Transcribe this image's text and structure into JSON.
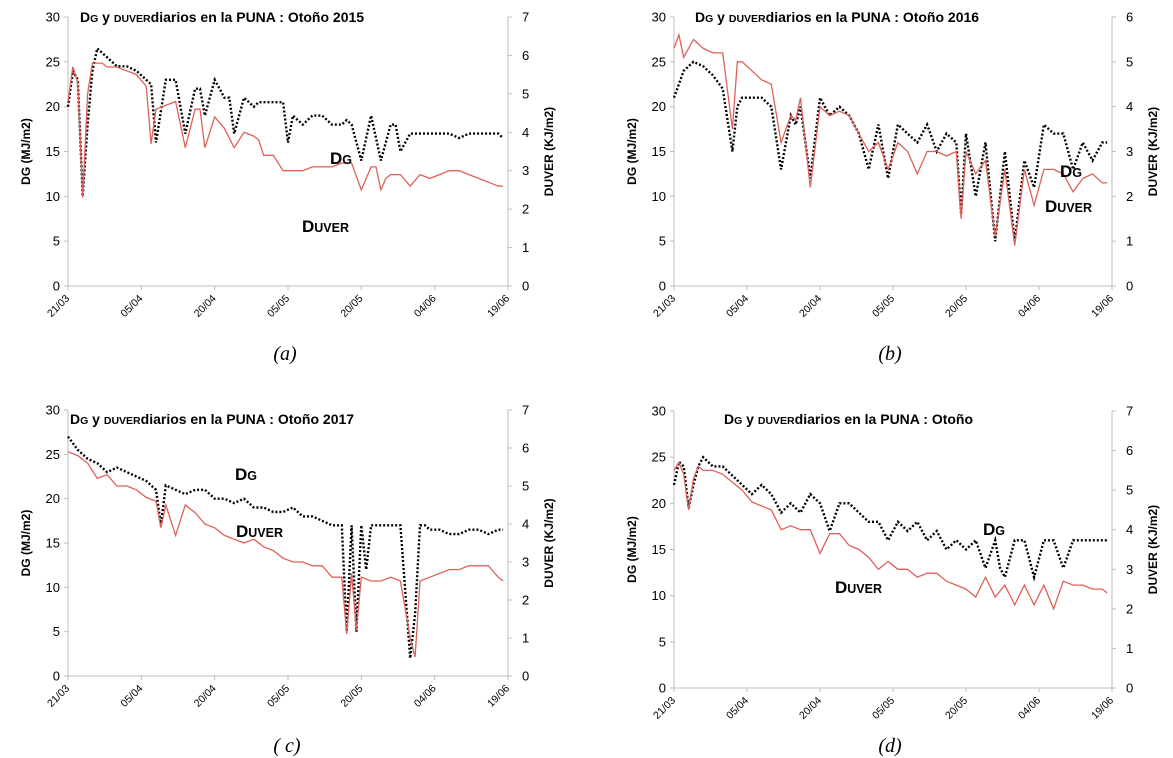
{
  "figure": {
    "dg_color": "#000000",
    "duver_color": "#e0605a"
  },
  "chart_data": [
    {
      "panel": "a",
      "type": "line",
      "caption": "(a)",
      "title_parts": [
        {
          "text": "D",
          "small": false
        },
        {
          "text": "G",
          "small": true
        },
        {
          "text": " y ",
          "small": false
        },
        {
          "text": "DUVER",
          "small": true
        },
        {
          "text": "diarios en la PUNA : Otoño 2015",
          "small": false
        }
      ],
      "ylabel_left": "DG (MJ/m2)",
      "ylabel_right": "DUVER (KJ/m2)",
      "ylim_left": [
        0,
        30
      ],
      "ylim_right": [
        0,
        7
      ],
      "yticks_left": [
        0,
        5,
        10,
        15,
        20,
        25,
        30
      ],
      "yticks_right": [
        0,
        1,
        2,
        3,
        4,
        5,
        6,
        7
      ],
      "xticks": [
        "21/03",
        "05/04",
        "20/04",
        "05/05",
        "20/05",
        "04/06",
        "19/06"
      ],
      "xlim_days": [
        0,
        90
      ],
      "series": [
        {
          "name": "DG",
          "axis": "left",
          "style": "dotted",
          "label_main": "D",
          "label_sub": "G",
          "x": [
            0,
            1,
            2,
            3,
            4,
            5,
            6,
            7,
            8,
            9,
            10,
            12,
            14,
            16,
            17,
            18,
            20,
            22,
            24,
            26,
            27,
            28,
            30,
            32,
            33,
            34,
            36,
            38,
            39,
            40,
            42,
            44,
            45,
            46,
            48,
            50,
            52,
            54,
            56,
            57,
            58,
            60,
            62,
            64,
            66,
            67,
            68,
            70,
            71,
            72,
            74,
            76,
            78,
            80,
            82,
            84,
            86,
            88,
            89
          ],
          "values": [
            20,
            24,
            23,
            10,
            18,
            24,
            26.5,
            26,
            25.5,
            25,
            24.5,
            24.5,
            24,
            23,
            22.5,
            16,
            23,
            23,
            17,
            22,
            22,
            19,
            23,
            21,
            21,
            17,
            21,
            20,
            20.5,
            20.5,
            20.5,
            20.5,
            16,
            19,
            18,
            19,
            19,
            18,
            18,
            18.5,
            18,
            14,
            19,
            14,
            18,
            18,
            15,
            17,
            17,
            17,
            17,
            17,
            17,
            16.5,
            17,
            17,
            17,
            17,
            16.5
          ]
        },
        {
          "name": "DUVER",
          "axis": "right",
          "style": "solid",
          "label_main": "D",
          "label_sub": "UVER",
          "x": [
            0,
            1,
            2,
            3,
            4,
            5,
            6,
            7,
            8,
            10,
            12,
            14,
            16,
            17,
            18,
            20,
            22,
            24,
            26,
            27,
            28,
            30,
            32,
            34,
            36,
            38,
            39,
            40,
            42,
            44,
            46,
            48,
            50,
            52,
            54,
            56,
            58,
            60,
            62,
            63,
            64,
            65,
            66,
            68,
            70,
            72,
            74,
            76,
            78,
            80,
            82,
            84,
            86,
            88,
            89
          ],
          "values": [
            4.8,
            5.7,
            5.3,
            2.3,
            5,
            5.8,
            5.8,
            5.8,
            5.7,
            5.7,
            5.6,
            5.5,
            5.2,
            3.7,
            4.6,
            4.7,
            4.8,
            3.6,
            4.6,
            4.6,
            3.6,
            4.4,
            4.1,
            3.6,
            4.0,
            3.9,
            3.8,
            3.4,
            3.4,
            3.0,
            3.0,
            3.0,
            3.1,
            3.1,
            3.1,
            3.2,
            3.2,
            2.5,
            3.1,
            3.1,
            2.5,
            2.8,
            2.9,
            2.9,
            2.6,
            2.9,
            2.8,
            2.9,
            3.0,
            3.0,
            2.9,
            2.8,
            2.7,
            2.6,
            2.6
          ]
        }
      ]
    },
    {
      "panel": "b",
      "type": "line",
      "caption": "(b)",
      "title_parts": [
        {
          "text": "D",
          "small": false
        },
        {
          "text": "G",
          "small": true
        },
        {
          "text": " y ",
          "small": false
        },
        {
          "text": "DUVER",
          "small": true
        },
        {
          "text": "diarios en la PUNA : Otoño 2016",
          "small": false
        }
      ],
      "ylabel_left": "DG (MJ/m2)",
      "ylabel_right": "DUVER (KJ/m2)",
      "ylim_left": [
        0,
        30
      ],
      "ylim_right": [
        0,
        6
      ],
      "yticks_left": [
        0,
        5,
        10,
        15,
        20,
        25,
        30
      ],
      "yticks_right": [
        0,
        1,
        2,
        3,
        4,
        5,
        6
      ],
      "xticks": [
        "21/03",
        "05/04",
        "20/04",
        "05/05",
        "20/05",
        "04/06",
        "19/06"
      ],
      "xlim_days": [
        0,
        90
      ],
      "series": [
        {
          "name": "DG",
          "axis": "left",
          "style": "dotted",
          "label_main": "D",
          "label_sub": "G",
          "x": [
            0,
            2,
            4,
            6,
            8,
            10,
            12,
            13,
            14,
            16,
            18,
            20,
            22,
            24,
            25,
            26,
            28,
            30,
            32,
            34,
            36,
            38,
            40,
            42,
            44,
            46,
            48,
            50,
            52,
            54,
            56,
            58,
            59,
            60,
            62,
            64,
            66,
            68,
            70,
            72,
            74,
            76,
            78,
            80,
            82,
            84,
            86,
            88,
            89
          ],
          "values": [
            21,
            24,
            25,
            24.5,
            23.5,
            22,
            15,
            20,
            21,
            21,
            21,
            20,
            13,
            19,
            18,
            20,
            12,
            21,
            19,
            20,
            19,
            17,
            13,
            18,
            12,
            18,
            17,
            16,
            18,
            15,
            17,
            16,
            8,
            17,
            10,
            16,
            5,
            15,
            5,
            14,
            11,
            18,
            17,
            17,
            13,
            16,
            14,
            16,
            16
          ]
        },
        {
          "name": "DUVER",
          "axis": "right",
          "style": "solid",
          "label_main": "D",
          "label_sub": "UVER",
          "x": [
            0,
            1,
            2,
            4,
            6,
            8,
            10,
            12,
            13,
            14,
            16,
            18,
            20,
            22,
            24,
            25,
            26,
            28,
            30,
            32,
            34,
            36,
            38,
            40,
            42,
            44,
            46,
            48,
            50,
            52,
            54,
            56,
            58,
            59,
            60,
            62,
            64,
            66,
            68,
            70,
            72,
            74,
            76,
            78,
            80,
            82,
            84,
            86,
            88,
            89
          ],
          "values": [
            5.3,
            5.6,
            5.1,
            5.5,
            5.3,
            5.2,
            5.2,
            3.5,
            5.0,
            5.0,
            4.8,
            4.6,
            4.5,
            3.2,
            3.8,
            3.7,
            4.2,
            2.2,
            4.0,
            3.8,
            3.9,
            3.8,
            3.4,
            3.0,
            3.2,
            2.6,
            3.2,
            3.0,
            2.5,
            3.0,
            3.0,
            2.9,
            3.0,
            1.5,
            3.0,
            2.5,
            2.8,
            1.1,
            2.6,
            0.9,
            2.6,
            1.8,
            2.6,
            2.6,
            2.5,
            2.1,
            2.4,
            2.5,
            2.3,
            2.3
          ]
        }
      ]
    },
    {
      "panel": "c",
      "type": "line",
      "caption": "( c)",
      "title_parts": [
        {
          "text": "D",
          "small": false
        },
        {
          "text": "G",
          "small": true
        },
        {
          "text": " y ",
          "small": false
        },
        {
          "text": "DUVER",
          "small": true
        },
        {
          "text": "diarios en la PUNA : Otoño 2017",
          "small": false
        }
      ],
      "ylabel_left": "DG (MJ/m2)",
      "ylabel_right": "DUVER (KJ/m2)",
      "ylim_left": [
        0,
        30
      ],
      "ylim_right": [
        0,
        7
      ],
      "yticks_left": [
        0,
        5,
        10,
        15,
        20,
        25,
        30
      ],
      "yticks_right": [
        0,
        1,
        2,
        3,
        4,
        5,
        6,
        7
      ],
      "xticks": [
        "21/03",
        "05/04",
        "20/04",
        "05/05",
        "20/05",
        "04/06",
        "19/06"
      ],
      "xlim_days": [
        0,
        90
      ],
      "series": [
        {
          "name": "DG",
          "axis": "left",
          "style": "dotted",
          "label_main": "D",
          "label_sub": "G",
          "x": [
            0,
            2,
            4,
            6,
            8,
            10,
            12,
            14,
            16,
            18,
            19,
            20,
            22,
            24,
            26,
            28,
            30,
            32,
            34,
            36,
            38,
            40,
            42,
            44,
            46,
            48,
            50,
            52,
            54,
            56,
            57,
            58,
            59,
            60,
            61,
            62,
            64,
            66,
            68,
            70,
            71,
            72,
            73,
            74,
            76,
            78,
            80,
            82,
            84,
            86,
            88,
            89
          ],
          "values": [
            27,
            25.5,
            24.5,
            24,
            23,
            23.5,
            23,
            22.5,
            22,
            21,
            17,
            21.5,
            21,
            20.5,
            21,
            21,
            20,
            20,
            19.5,
            20,
            19,
            19,
            18.5,
            18.5,
            19,
            18,
            18,
            17.5,
            17,
            17,
            5,
            17,
            5,
            17,
            12,
            17,
            17,
            17,
            17,
            2,
            7,
            17,
            17,
            16.5,
            16.5,
            16,
            16,
            16.5,
            16.5,
            16,
            16.5,
            16.5
          ]
        },
        {
          "name": "DUVER",
          "axis": "right",
          "style": "solid",
          "label_main": "D",
          "label_sub": "UVER",
          "x": [
            0,
            2,
            4,
            6,
            8,
            10,
            12,
            14,
            16,
            18,
            19,
            20,
            22,
            24,
            26,
            28,
            30,
            32,
            34,
            36,
            38,
            40,
            42,
            44,
            46,
            48,
            50,
            52,
            54,
            56,
            57,
            58,
            59,
            60,
            62,
            64,
            66,
            68,
            70,
            71,
            72,
            74,
            76,
            78,
            80,
            82,
            84,
            86,
            88,
            89
          ],
          "values": [
            5.9,
            5.8,
            5.6,
            5.2,
            5.3,
            5.0,
            5.0,
            4.9,
            4.7,
            4.6,
            3.9,
            4.5,
            3.7,
            4.5,
            4.3,
            4.0,
            3.9,
            3.7,
            3.6,
            3.5,
            3.6,
            3.4,
            3.3,
            3.1,
            3.0,
            3.0,
            2.9,
            2.9,
            2.6,
            2.6,
            1.1,
            2.7,
            1.2,
            2.6,
            2.5,
            2.5,
            2.6,
            2.5,
            1.0,
            0.5,
            2.5,
            2.6,
            2.7,
            2.8,
            2.8,
            2.9,
            2.9,
            2.9,
            2.6,
            2.5
          ]
        }
      ]
    },
    {
      "panel": "d",
      "type": "line",
      "caption": "(d)",
      "title_parts": [
        {
          "text": "D",
          "small": false
        },
        {
          "text": "G",
          "small": true
        },
        {
          "text": " y ",
          "small": false
        },
        {
          "text": "DUVER",
          "small": true
        },
        {
          "text": "diarios en la PUNA : Otoño",
          "small": false
        }
      ],
      "ylabel_left": "DG (MJ/m2)",
      "ylabel_right": "DUVER (KJ/m2)",
      "ylim_left": [
        0,
        30
      ],
      "ylim_right": [
        0,
        7
      ],
      "yticks_left": [
        0,
        5,
        10,
        15,
        20,
        25,
        30
      ],
      "yticks_right": [
        0,
        1,
        2,
        3,
        4,
        5,
        6,
        7
      ],
      "xticks": [
        "21/03",
        "05/04",
        "20/04",
        "05/05",
        "20/05",
        "04/06",
        "19/06"
      ],
      "xlim_days": [
        0,
        90
      ],
      "series": [
        {
          "name": "DG",
          "axis": "left",
          "style": "dotted",
          "label_main": "D",
          "label_sub": "G",
          "x": [
            0,
            1,
            2,
            3,
            4,
            5,
            6,
            8,
            10,
            12,
            14,
            16,
            18,
            20,
            22,
            24,
            26,
            28,
            30,
            32,
            34,
            36,
            38,
            40,
            42,
            44,
            46,
            48,
            50,
            52,
            54,
            56,
            58,
            60,
            62,
            64,
            66,
            67,
            68,
            70,
            72,
            74,
            76,
            78,
            80,
            82,
            84,
            86,
            88,
            89
          ],
          "values": [
            22,
            24.5,
            24,
            19.5,
            22,
            24,
            25,
            24,
            24,
            23,
            22,
            21,
            22,
            21,
            19,
            20,
            19,
            21,
            20,
            17,
            20,
            20,
            19,
            18,
            18,
            16,
            18,
            17,
            18,
            16,
            17,
            15,
            16,
            15,
            16,
            13,
            16,
            13,
            12,
            16,
            16,
            12,
            16,
            16,
            13,
            16,
            16,
            16,
            16,
            16
          ]
        },
        {
          "name": "DUVER",
          "axis": "right",
          "style": "solid",
          "label_main": "D",
          "label_sub": "UVER",
          "x": [
            0,
            1,
            2,
            3,
            4,
            5,
            6,
            8,
            10,
            12,
            14,
            16,
            18,
            20,
            22,
            24,
            26,
            28,
            30,
            32,
            34,
            36,
            38,
            40,
            42,
            44,
            46,
            48,
            50,
            52,
            54,
            56,
            58,
            60,
            62,
            64,
            66,
            68,
            70,
            72,
            74,
            76,
            78,
            80,
            82,
            84,
            86,
            88,
            89
          ],
          "values": [
            5.5,
            5.7,
            5.4,
            4.5,
            5.3,
            5.6,
            5.5,
            5.5,
            5.4,
            5.2,
            5.0,
            4.7,
            4.6,
            4.5,
            4.0,
            4.1,
            4.0,
            4.0,
            3.4,
            3.9,
            3.9,
            3.6,
            3.5,
            3.3,
            3.0,
            3.2,
            3.0,
            3.0,
            2.8,
            2.9,
            2.9,
            2.7,
            2.6,
            2.5,
            2.3,
            2.8,
            2.3,
            2.6,
            2.1,
            2.6,
            2.1,
            2.6,
            2.0,
            2.7,
            2.6,
            2.6,
            2.5,
            2.5,
            2.4
          ]
        }
      ]
    }
  ]
}
